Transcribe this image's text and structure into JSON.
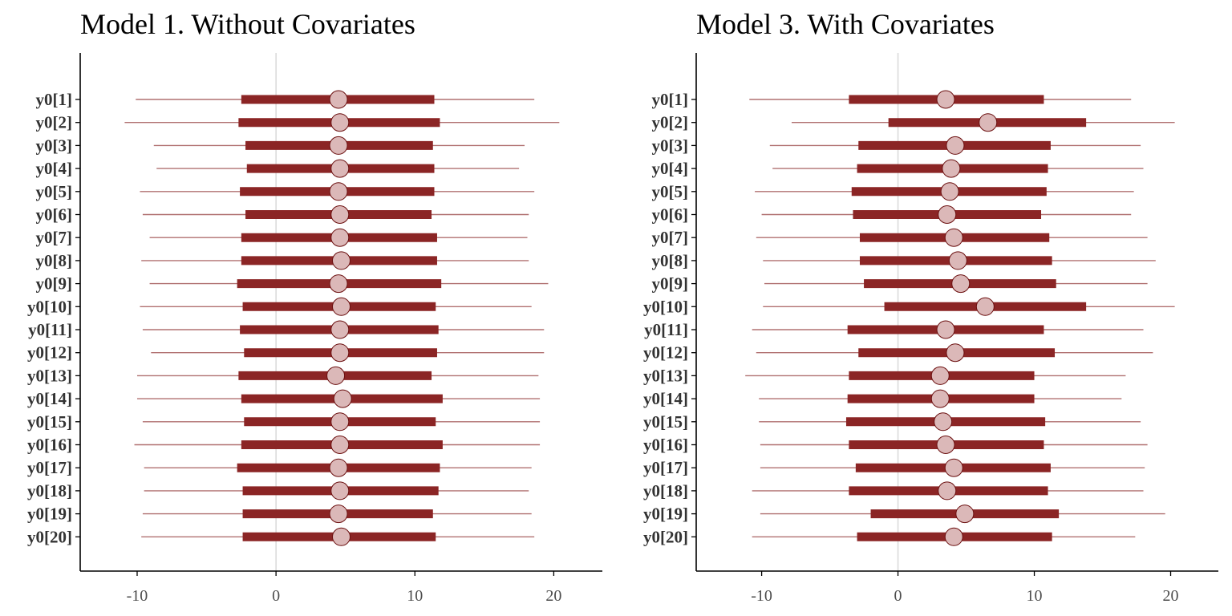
{
  "chart_data": [
    {
      "type": "interval",
      "title": "Model 1. Without Covariates",
      "xlim": [
        -14.1,
        23.5
      ],
      "xticks": [
        -10,
        0,
        10,
        20
      ],
      "xtick_labels": [
        "-10",
        "0",
        "10",
        "20"
      ],
      "vline": 0,
      "grid": false,
      "categories": [
        "y0[1]",
        "y0[2]",
        "y0[3]",
        "y0[4]",
        "y0[5]",
        "y0[6]",
        "y0[7]",
        "y0[8]",
        "y0[9]",
        "y0[10]",
        "y0[11]",
        "y0[12]",
        "y0[13]",
        "y0[14]",
        "y0[15]",
        "y0[16]",
        "y0[17]",
        "y0[18]",
        "y0[19]",
        "y0[20]"
      ],
      "point": [
        4.5,
        4.6,
        4.5,
        4.6,
        4.5,
        4.6,
        4.6,
        4.7,
        4.5,
        4.7,
        4.6,
        4.6,
        4.3,
        4.8,
        4.6,
        4.6,
        4.5,
        4.6,
        4.5,
        4.7
      ],
      "inner_low": [
        -2.5,
        -2.7,
        -2.2,
        -2.1,
        -2.6,
        -2.2,
        -2.5,
        -2.5,
        -2.8,
        -2.4,
        -2.6,
        -2.3,
        -2.7,
        -2.5,
        -2.3,
        -2.5,
        -2.8,
        -2.4,
        -2.4,
        -2.4
      ],
      "inner_high": [
        11.4,
        11.8,
        11.3,
        11.4,
        11.4,
        11.2,
        11.6,
        11.6,
        11.9,
        11.5,
        11.7,
        11.6,
        11.2,
        12.0,
        11.5,
        12.0,
        11.8,
        11.7,
        11.3,
        11.5
      ],
      "outer_low": [
        -10.1,
        -10.9,
        -8.8,
        -8.6,
        -9.8,
        -9.6,
        -9.1,
        -9.7,
        -9.1,
        -9.8,
        -9.6,
        -9.0,
        -10.0,
        -10.0,
        -9.6,
        -10.2,
        -9.5,
        -9.5,
        -9.6,
        -9.7
      ],
      "outer_high": [
        18.6,
        20.4,
        17.9,
        17.5,
        18.6,
        18.2,
        18.1,
        18.2,
        19.6,
        18.4,
        19.3,
        19.3,
        18.9,
        19.0,
        19.0,
        19.0,
        18.4,
        18.2,
        18.4,
        18.6
      ]
    },
    {
      "type": "interval",
      "title": "Model 3. With Covariates",
      "xlim": [
        -14.8,
        23.5
      ],
      "xticks": [
        -10,
        0,
        10,
        20
      ],
      "xtick_labels": [
        "-10",
        "0",
        "10",
        "20"
      ],
      "vline": 0,
      "grid": false,
      "categories": [
        "y0[1]",
        "y0[2]",
        "y0[3]",
        "y0[4]",
        "y0[5]",
        "y0[6]",
        "y0[7]",
        "y0[8]",
        "y0[9]",
        "y0[10]",
        "y0[11]",
        "y0[12]",
        "y0[13]",
        "y0[14]",
        "y0[15]",
        "y0[16]",
        "y0[17]",
        "y0[18]",
        "y0[19]",
        "y0[20]"
      ],
      "point": [
        3.5,
        6.6,
        4.2,
        3.9,
        3.8,
        3.6,
        4.1,
        4.4,
        4.6,
        6.4,
        3.5,
        4.2,
        3.1,
        3.1,
        3.3,
        3.5,
        4.1,
        3.6,
        4.9,
        4.1
      ],
      "inner_low": [
        -3.6,
        -0.7,
        -2.9,
        -3.0,
        -3.4,
        -3.3,
        -2.8,
        -2.8,
        -2.5,
        -1.0,
        -3.7,
        -2.9,
        -3.6,
        -3.7,
        -3.8,
        -3.6,
        -3.1,
        -3.6,
        -2.0,
        -3.0
      ],
      "inner_high": [
        10.7,
        13.8,
        11.2,
        11.0,
        10.9,
        10.5,
        11.1,
        11.3,
        11.6,
        13.8,
        10.7,
        11.5,
        10.0,
        10.0,
        10.8,
        10.7,
        11.2,
        11.0,
        11.8,
        11.3
      ],
      "outer_low": [
        -10.9,
        -7.8,
        -9.4,
        -9.2,
        -10.5,
        -10.0,
        -10.4,
        -9.9,
        -9.8,
        -9.9,
        -10.7,
        -10.4,
        -11.2,
        -10.2,
        -10.2,
        -10.1,
        -10.1,
        -10.7,
        -10.1,
        -10.7
      ],
      "outer_high": [
        17.1,
        20.3,
        17.8,
        18.0,
        17.3,
        17.1,
        18.3,
        18.9,
        18.3,
        20.3,
        18.0,
        18.7,
        16.7,
        16.4,
        17.8,
        18.3,
        18.1,
        18.0,
        19.6,
        17.4
      ]
    }
  ],
  "colors": {
    "inner": "#8b2525",
    "outer": "#b07070",
    "point_fill": "#dbb8b8",
    "point_stroke": "#6b0f0f",
    "zero_line": "#d9d9d9",
    "axis": "#000000"
  }
}
